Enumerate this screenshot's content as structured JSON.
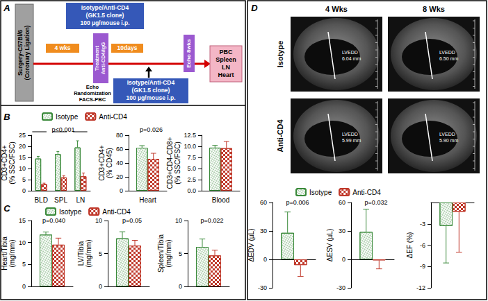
{
  "panel_labels": [
    "A",
    "B",
    "C",
    "D"
  ],
  "diagram": {
    "surgery": [
      "Surgery-C57Bl/6",
      "(Coronary Ligation)"
    ],
    "treatment_top": [
      "Isotype/Anti-CD4",
      "(GK1.5 clone)",
      "100 µg/mouse i.p."
    ],
    "interval_1": "4 wks",
    "treatment": [
      "Treatment",
      "Anti-CD4/IgG"
    ],
    "baseline": [
      "Echo",
      "Randomization",
      "FACS-PBC"
    ],
    "interval_2": "10days",
    "treatment_bottom": [
      "Isotype/Anti-CD4",
      "(GK1.5 clone)",
      "100 µg/mouse i.p."
    ],
    "echo": "Echo 8wks",
    "harvest": [
      "PBC",
      "Spleen",
      "LN",
      "Heart"
    ]
  },
  "ultrasound": {
    "columns": [
      "4 Wks",
      "8 Wks"
    ],
    "rows": [
      "Isotype",
      "Anti-CD4"
    ],
    "measure": "LVEDD",
    "cells": [
      [
        "6.04 mm",
        "6.50 mm"
      ],
      [
        "5.99 mm",
        "5.90 mm"
      ]
    ]
  },
  "chart_data": [
    {
      "type": "bar",
      "categories": [
        "BLD",
        "SPL",
        "LN"
      ],
      "ylabel": "CD3+CD4+ (% SSC/FSC)",
      "ylim": [
        0,
        25
      ],
      "yticks": [
        0,
        5,
        10,
        15,
        20,
        25
      ],
      "grid": false,
      "legend": "top",
      "annotation": "p<0.001",
      "series": [
        {
          "name": "Isotype",
          "color": "#3a8a3a",
          "values": [
            14.5,
            16.5,
            19.5
          ],
          "errors": [
            1,
            1.2,
            3
          ]
        },
        {
          "name": "Anti-CD4",
          "color": "#c0392b",
          "values": [
            3,
            6,
            6.5
          ],
          "errors": [
            0.4,
            0.8,
            1.5
          ]
        }
      ]
    },
    {
      "type": "bar",
      "categories": [
        "Heart"
      ],
      "ylabel": "CD3+CD4+ (% CD45)",
      "ylim": [
        0,
        80
      ],
      "yticks": [
        0,
        20,
        40,
        60,
        80
      ],
      "grid": false,
      "annotation": "p=0.026",
      "series": [
        {
          "name": "Isotype",
          "color": "#3a8a3a",
          "values": [
            62
          ],
          "errors": [
            3
          ]
        },
        {
          "name": "Anti-CD4",
          "color": "#c0392b",
          "values": [
            46
          ],
          "errors": [
            8
          ]
        }
      ]
    },
    {
      "type": "bar",
      "categories": [
        "Blood"
      ],
      "ylabel": "CD3+CD4-CD8+ (% SSC/FSC)",
      "ylim": [
        0,
        12.5
      ],
      "yticks": [
        {
          "value": 0,
          "label": "0.0"
        },
        2.5,
        {
          "value": 5,
          "label": "5.0"
        },
        7.5,
        {
          "value": 10,
          "label": "10.0"
        },
        12.5
      ],
      "grid": false,
      "series": [
        {
          "name": "Isotype",
          "color": "#3a8a3a",
          "values": [
            9.7
          ],
          "errors": [
            0.5
          ]
        },
        {
          "name": "Anti-CD4",
          "color": "#c0392b",
          "values": [
            9.6
          ],
          "errors": [
            1.5
          ]
        }
      ]
    },
    {
      "type": "bar",
      "categories": [
        null
      ],
      "ylabel": "Heart/Tibia (mg/mm)",
      "ylim": [
        0,
        15
      ],
      "yticks": [
        0,
        5,
        10,
        15
      ],
      "grid": false,
      "legend": "top",
      "annotation": "p=0.040",
      "series": [
        {
          "name": "Isotype",
          "color": "#3a8a3a",
          "values": [
            11.8
          ],
          "errors": [
            0.6
          ]
        },
        {
          "name": "Anti-CD4",
          "color": "#c0392b",
          "values": [
            9.5
          ],
          "errors": [
            1.5
          ]
        }
      ]
    },
    {
      "type": "bar",
      "categories": [
        null
      ],
      "ylabel": "LV/Tibia (mg/mm)",
      "ylim": [
        0,
        10
      ],
      "yticks": [
        0,
        5,
        10
      ],
      "grid": false,
      "annotation": "p=0.05",
      "series": [
        {
          "name": "Isotype",
          "color": "#3a8a3a",
          "values": [
            7.3
          ],
          "errors": [
            1
          ]
        },
        {
          "name": "Anti-CD4",
          "color": "#c0392b",
          "values": [
            6.2
          ],
          "errors": [
            0.8
          ]
        }
      ]
    },
    {
      "type": "bar",
      "categories": [
        null
      ],
      "ylabel": "Spleen/Tibia (mg/mm)",
      "ylim": [
        0,
        10
      ],
      "yticks": [
        0,
        5,
        10
      ],
      "grid": false,
      "annotation": "p=0.022",
      "series": [
        {
          "name": "Isotype",
          "color": "#3a8a3a",
          "values": [
            6
          ],
          "errors": [
            1.2
          ]
        },
        {
          "name": "Anti-CD4",
          "color": "#c0392b",
          "values": [
            4.7
          ],
          "errors": [
            0.8
          ]
        }
      ]
    },
    {
      "type": "bar",
      "categories": [
        null
      ],
      "ylabel": "ΔEDV (µL)",
      "ylim": [
        -30,
        60
      ],
      "yticks": [
        -30,
        0,
        30,
        60
      ],
      "grid": false,
      "legend": "top",
      "annotation": "p=0.006",
      "series": [
        {
          "name": "Isotype",
          "color": "#3a8a3a",
          "values": [
            28
          ],
          "errors": [
            22
          ]
        },
        {
          "name": "Anti-CD4",
          "color": "#c0392b",
          "values": [
            -6
          ],
          "errors": [
            12
          ]
        }
      ]
    },
    {
      "type": "bar",
      "categories": [
        null
      ],
      "ylabel": "ΔESV (µL)",
      "ylim": [
        -30,
        60
      ],
      "yticks": [
        -30,
        0,
        30,
        60
      ],
      "grid": false,
      "annotation": "p=0.032",
      "series": [
        {
          "name": "Isotype",
          "color": "#3a8a3a",
          "values": [
            29
          ],
          "errors": [
            24
          ]
        },
        {
          "name": "Anti-CD4",
          "color": "#c0392b",
          "values": [
            -1
          ],
          "errors": [
            9
          ]
        }
      ]
    },
    {
      "type": "bar",
      "categories": [
        null
      ],
      "ylabel": "ΔEF (%)",
      "ylim": [
        -12,
        0
      ],
      "yticks": [
        -12,
        -9,
        -6,
        -3
      ],
      "grid": false,
      "series": [
        {
          "name": "Isotype",
          "color": "#3a8a3a",
          "values": [
            -3.3
          ],
          "errors": [
            5.2
          ]
        },
        {
          "name": "Anti-CD4",
          "color": "#c0392b",
          "values": [
            -1.3
          ],
          "errors": [
            5.7
          ]
        }
      ]
    }
  ]
}
